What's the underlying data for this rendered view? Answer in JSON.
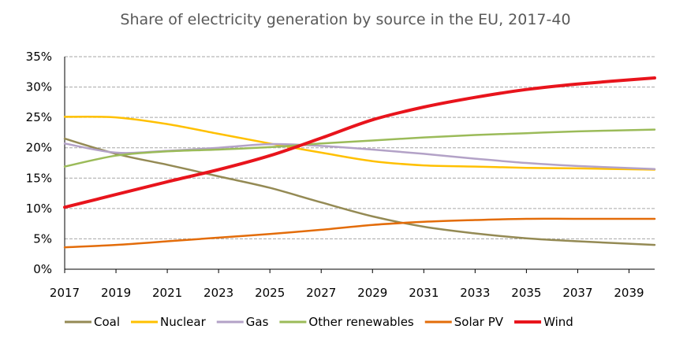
{
  "chart_data": {
    "type": "line",
    "title": "Share of electricity generation by source in the EU, 2017-40",
    "xlabel": "",
    "ylabel": "",
    "x": [
      2017,
      2019,
      2021,
      2023,
      2025,
      2027,
      2029,
      2031,
      2033,
      2035,
      2037,
      2040
    ],
    "xlim": [
      2017,
      2040
    ],
    "ylim": [
      0,
      35
    ],
    "x_ticks": [
      "2017",
      "2019",
      "2021",
      "2023",
      "2025",
      "2027",
      "2029",
      "2031",
      "2033",
      "2035",
      "2037",
      "2039"
    ],
    "y_ticks": [
      "0%",
      "5%",
      "10%",
      "15%",
      "20%",
      "25%",
      "30%",
      "35%"
    ],
    "grid": true,
    "legend_position": "bottom",
    "series": [
      {
        "name": "Coal",
        "color": "#948a54",
        "values": [
          21.5,
          19.0,
          17.2,
          15.3,
          13.4,
          11.0,
          8.7,
          7.0,
          5.9,
          5.1,
          4.6,
          4.0
        ]
      },
      {
        "name": "Nuclear",
        "color": "#ffc000",
        "values": [
          25.1,
          25.0,
          23.9,
          22.3,
          20.7,
          19.2,
          17.8,
          17.1,
          16.9,
          16.7,
          16.6,
          16.4
        ]
      },
      {
        "name": "Gas",
        "color": "#b3a2c7",
        "values": [
          20.7,
          19.2,
          19.5,
          20.0,
          20.6,
          20.3,
          19.7,
          19.0,
          18.2,
          17.5,
          17.0,
          16.5
        ]
      },
      {
        "name": "Other renewables",
        "color": "#9bbb59",
        "values": [
          16.9,
          18.7,
          19.4,
          19.7,
          20.1,
          20.7,
          21.2,
          21.7,
          22.1,
          22.4,
          22.7,
          23.0
        ]
      },
      {
        "name": "Solar PV",
        "color": "#e36c09",
        "values": [
          3.6,
          4.0,
          4.6,
          5.2,
          5.8,
          6.5,
          7.3,
          7.8,
          8.1,
          8.3,
          8.3,
          8.3
        ]
      },
      {
        "name": "Wind",
        "color": "#e8141c",
        "values": [
          10.2,
          12.3,
          14.4,
          16.4,
          18.7,
          21.6,
          24.6,
          26.7,
          28.3,
          29.6,
          30.5,
          31.5
        ]
      }
    ]
  }
}
